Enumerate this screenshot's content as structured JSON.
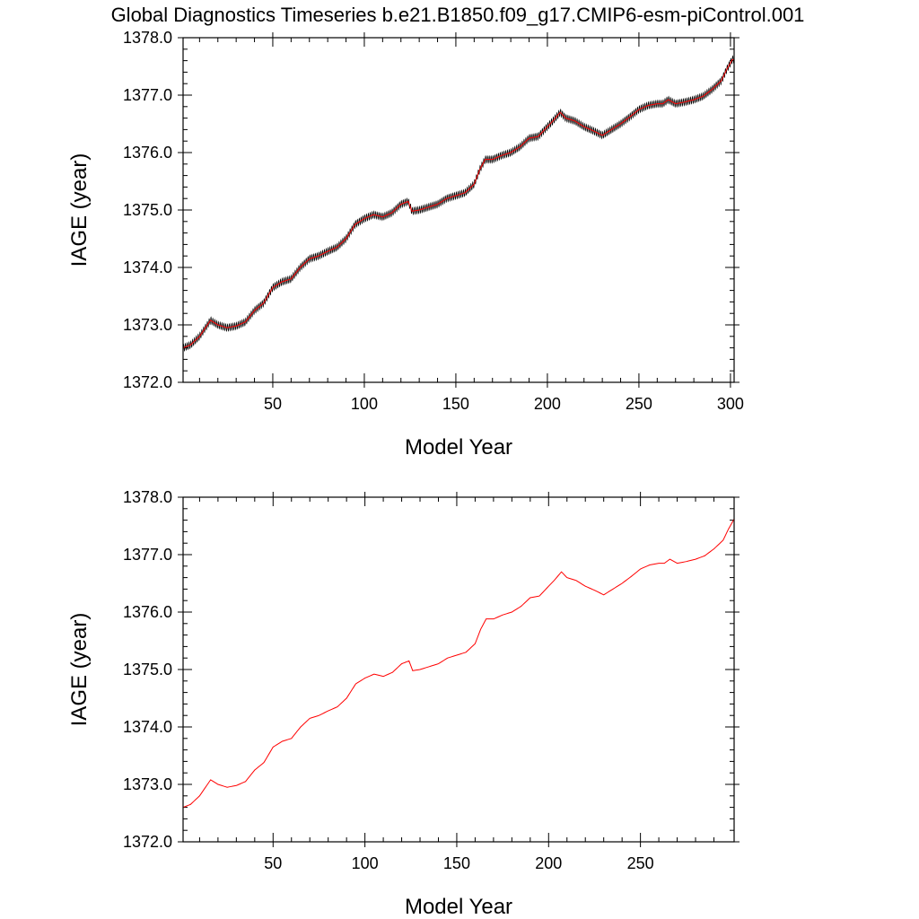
{
  "figure": {
    "title": "Global Diagnostics Timeseries b.e21.B1850.f09_g17.CMIP6-esm-piControl.001"
  },
  "colors": {
    "raw": "#000000",
    "smooth": "#ff0000",
    "axes": "#000000"
  },
  "chart_data": [
    {
      "type": "line",
      "xlabel": "Model Year",
      "ylabel": "IAGE (year)",
      "xlim": [
        1,
        302
      ],
      "ylim": [
        1372.0,
        1378.0
      ],
      "xticks": [
        50,
        100,
        150,
        200,
        250,
        300
      ],
      "xtick_labels": [
        "50",
        "100",
        "150",
        "200",
        "250",
        "300"
      ],
      "yticks": [
        1372.0,
        1373.0,
        1374.0,
        1375.0,
        1376.0,
        1377.0,
        1378.0
      ],
      "ytick_labels": [
        "1372.0",
        "1373.0",
        "1374.0",
        "1375.0",
        "1376.0",
        "1377.0",
        "1378.0"
      ],
      "series": [
        {
          "style": "monthly",
          "color": "#000000",
          "seasonal_amplitude": 0.06
        },
        {
          "style": "annual",
          "color": "#ff0000"
        }
      ],
      "x": [
        1,
        5,
        10,
        16,
        20,
        25,
        30,
        35,
        40,
        45,
        50,
        55,
        60,
        65,
        70,
        75,
        80,
        85,
        90,
        95,
        100,
        105,
        110,
        115,
        120,
        124,
        126,
        130,
        135,
        140,
        145,
        150,
        155,
        160,
        163,
        166,
        170,
        175,
        180,
        185,
        190,
        195,
        200,
        203,
        207,
        210,
        215,
        220,
        225,
        230,
        235,
        240,
        245,
        250,
        255,
        260,
        263,
        266,
        270,
        275,
        280,
        285,
        290,
        295,
        298,
        301
      ],
      "values": [
        1372.6,
        1372.65,
        1372.8,
        1373.08,
        1373.0,
        1372.95,
        1372.98,
        1373.05,
        1373.25,
        1373.38,
        1373.65,
        1373.75,
        1373.8,
        1374.0,
        1374.15,
        1374.2,
        1374.28,
        1374.35,
        1374.5,
        1374.75,
        1374.85,
        1374.92,
        1374.88,
        1374.95,
        1375.1,
        1375.15,
        1374.98,
        1375.0,
        1375.05,
        1375.1,
        1375.2,
        1375.25,
        1375.3,
        1375.45,
        1375.7,
        1375.88,
        1375.88,
        1375.95,
        1376.0,
        1376.1,
        1376.25,
        1376.28,
        1376.45,
        1376.55,
        1376.7,
        1376.6,
        1376.55,
        1376.45,
        1376.38,
        1376.3,
        1376.4,
        1376.5,
        1376.62,
        1376.75,
        1376.82,
        1376.85,
        1376.85,
        1376.92,
        1376.85,
        1376.88,
        1376.92,
        1376.98,
        1377.1,
        1377.25,
        1377.45,
        1377.62
      ]
    },
    {
      "type": "line",
      "xlabel": "Model Year",
      "ylabel": "IAGE (year)",
      "xlim": [
        1,
        301
      ],
      "ylim": [
        1372.0,
        1378.0
      ],
      "xticks": [
        50,
        100,
        150,
        200,
        250
      ],
      "xtick_labels": [
        "50",
        "100",
        "150",
        "200",
        "250"
      ],
      "yticks": [
        1372.0,
        1373.0,
        1374.0,
        1375.0,
        1376.0,
        1377.0,
        1378.0
      ],
      "ytick_labels": [
        "1372.0",
        "1373.0",
        "1374.0",
        "1375.0",
        "1376.0",
        "1377.0",
        "1378.0"
      ],
      "series": [
        {
          "style": "annual",
          "color": "#ff0000"
        }
      ],
      "x": [
        1,
        5,
        10,
        16,
        20,
        25,
        30,
        35,
        40,
        45,
        50,
        55,
        60,
        65,
        70,
        75,
        80,
        85,
        90,
        95,
        100,
        105,
        110,
        115,
        120,
        124,
        126,
        130,
        135,
        140,
        145,
        150,
        155,
        160,
        163,
        166,
        170,
        175,
        180,
        185,
        190,
        195,
        200,
        203,
        207,
        210,
        215,
        220,
        225,
        230,
        235,
        240,
        245,
        250,
        255,
        260,
        263,
        266,
        270,
        275,
        280,
        285,
        290,
        295,
        298,
        301
      ],
      "values": [
        1372.6,
        1372.65,
        1372.8,
        1373.08,
        1373.0,
        1372.95,
        1372.98,
        1373.05,
        1373.25,
        1373.38,
        1373.65,
        1373.75,
        1373.8,
        1374.0,
        1374.15,
        1374.2,
        1374.28,
        1374.35,
        1374.5,
        1374.75,
        1374.85,
        1374.92,
        1374.88,
        1374.95,
        1375.1,
        1375.15,
        1374.98,
        1375.0,
        1375.05,
        1375.1,
        1375.2,
        1375.25,
        1375.3,
        1375.45,
        1375.7,
        1375.88,
        1375.88,
        1375.95,
        1376.0,
        1376.1,
        1376.25,
        1376.28,
        1376.45,
        1376.55,
        1376.7,
        1376.6,
        1376.55,
        1376.45,
        1376.38,
        1376.3,
        1376.4,
        1376.5,
        1376.62,
        1376.75,
        1376.82,
        1376.85,
        1376.85,
        1376.92,
        1376.85,
        1376.88,
        1376.92,
        1376.98,
        1377.1,
        1377.25,
        1377.45,
        1377.62
      ]
    }
  ]
}
